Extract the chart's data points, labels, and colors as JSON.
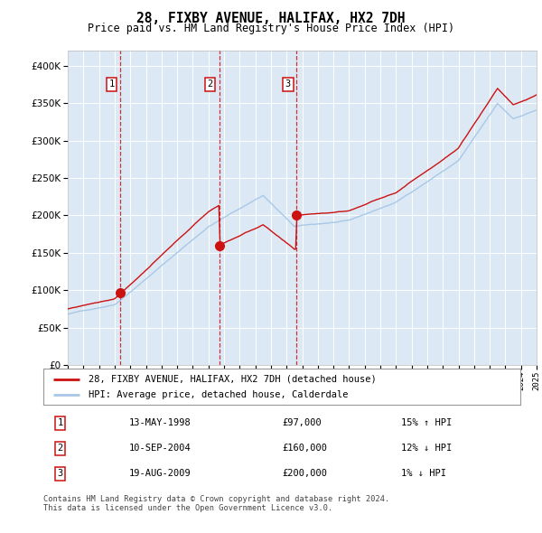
{
  "title": "28, FIXBY AVENUE, HALIFAX, HX2 7DH",
  "subtitle": "Price paid vs. HM Land Registry's House Price Index (HPI)",
  "background_color": "#dce9f5",
  "plot_bg_color": "#dce9f5",
  "red_line_label": "28, FIXBY AVENUE, HALIFAX, HX2 7DH (detached house)",
  "blue_line_label": "HPI: Average price, detached house, Calderdale",
  "footer": "Contains HM Land Registry data © Crown copyright and database right 2024.\nThis data is licensed under the Open Government Licence v3.0.",
  "transactions": [
    {
      "num": 1,
      "date": "13-MAY-1998",
      "price": 97000,
      "hpi_pct": "15%",
      "direction": "↑"
    },
    {
      "num": 2,
      "date": "10-SEP-2004",
      "price": 160000,
      "hpi_pct": "12%",
      "direction": "↓"
    },
    {
      "num": 3,
      "date": "19-AUG-2009",
      "price": 200000,
      "hpi_pct": "1%",
      "direction": "↓"
    }
  ],
  "transaction_years": [
    1998.37,
    2004.69,
    2009.63
  ],
  "transaction_prices": [
    97000,
    160000,
    200000
  ],
  "ylim": [
    0,
    420000
  ],
  "yticks": [
    0,
    50000,
    100000,
    150000,
    200000,
    250000,
    300000,
    350000,
    400000
  ],
  "year_start": 1995,
  "year_end": 2025
}
